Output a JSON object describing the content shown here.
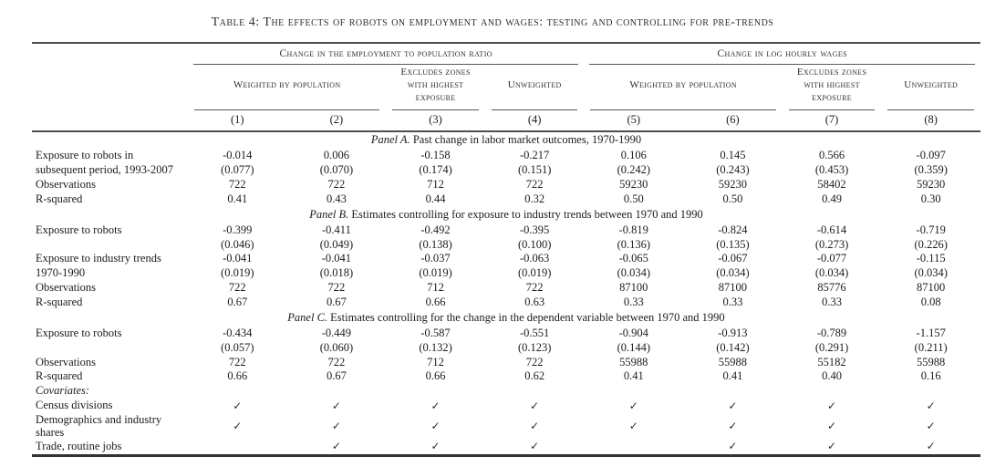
{
  "title": "Table 4: The effects of robots on employment and wages: testing and controlling for pre-trends",
  "colors": {
    "text": "#1c1c1c",
    "rule": "#4d4d4d"
  },
  "table": {
    "group_headers": [
      "Change in the employment to population ratio",
      "Change in log hourly wages"
    ],
    "sub_headers": [
      "Weighted by population",
      "Excludes zones with highest exposure",
      "Unweighted",
      "Weighted by population",
      "Excludes zones with highest exposure",
      "Unweighted"
    ],
    "col_numbers": [
      "(1)",
      "(2)",
      "(3)",
      "(4)",
      "(5)",
      "(6)",
      "(7)",
      "(8)"
    ],
    "panels": {
      "a": {
        "title_em": "Panel A.",
        "title_rest": " Past change in labor market outcomes, 1970-1990",
        "coef_label1": "Exposure to robots in",
        "coef_label2": "subsequent period, 1993-2007",
        "coef": [
          "-0.014",
          "0.006",
          "-0.158",
          "-0.217",
          "0.106",
          "0.145",
          "0.566",
          "-0.097"
        ],
        "se": [
          "(0.077)",
          "(0.070)",
          "(0.174)",
          "(0.151)",
          "(0.242)",
          "(0.243)",
          "(0.453)",
          "(0.359)"
        ],
        "obs_label": "Observations",
        "obs": [
          "722",
          "722",
          "712",
          "722",
          "59230",
          "59230",
          "58402",
          "59230"
        ],
        "r2_label": "R-squared",
        "r2": [
          "0.41",
          "0.43",
          "0.44",
          "0.32",
          "0.50",
          "0.50",
          "0.49",
          "0.30"
        ]
      },
      "b": {
        "title_em": "Panel B.",
        "title_rest": " Estimates controlling for exposure to industry trends between 1970 and 1990",
        "coef_label": "Exposure to robots",
        "coef": [
          "-0.399",
          "-0.411",
          "-0.492",
          "-0.395",
          "-0.819",
          "-0.824",
          "-0.614",
          "-0.719"
        ],
        "se": [
          "(0.046)",
          "(0.049)",
          "(0.138)",
          "(0.100)",
          "(0.136)",
          "(0.135)",
          "(0.273)",
          "(0.226)"
        ],
        "trend_label1": "Exposure to industry trends",
        "trend_label2": "1970-1990",
        "trend_coef": [
          "-0.041",
          "-0.041",
          "-0.037",
          "-0.063",
          "-0.065",
          "-0.067",
          "-0.077",
          "-0.115"
        ],
        "trend_se": [
          "(0.019)",
          "(0.018)",
          "(0.019)",
          "(0.019)",
          "(0.034)",
          "(0.034)",
          "(0.034)",
          "(0.034)"
        ],
        "obs_label": "Observations",
        "obs": [
          "722",
          "722",
          "712",
          "722",
          "87100",
          "87100",
          "85776",
          "87100"
        ],
        "r2_label": "R-squared",
        "r2": [
          "0.67",
          "0.67",
          "0.66",
          "0.63",
          "0.33",
          "0.33",
          "0.33",
          "0.08"
        ]
      },
      "c": {
        "title_em": "Panel C.",
        "title_rest": " Estimates controlling for the change in the dependent variable between 1970 and 1990",
        "coef_label": "Exposure to robots",
        "coef": [
          "-0.434",
          "-0.449",
          "-0.587",
          "-0.551",
          "-0.904",
          "-0.913",
          "-0.789",
          "-1.157"
        ],
        "se": [
          "(0.057)",
          "(0.060)",
          "(0.132)",
          "(0.123)",
          "(0.144)",
          "(0.142)",
          "(0.291)",
          "(0.211)"
        ],
        "obs_label": "Observations",
        "obs": [
          "722",
          "722",
          "712",
          "722",
          "55988",
          "55988",
          "55182",
          "55988"
        ],
        "r2_label": "R-squared",
        "r2": [
          "0.66",
          "0.67",
          "0.66",
          "0.62",
          "0.41",
          "0.41",
          "0.40",
          "0.16"
        ]
      }
    },
    "covariates": {
      "section_label": "Covariates:",
      "rows": [
        {
          "label": "Census divisions",
          "checks": [
            "✓",
            "✓",
            "✓",
            "✓",
            "✓",
            "✓",
            "✓",
            "✓"
          ]
        },
        {
          "label": "Demographics and industry shares",
          "checks": [
            "✓",
            "✓",
            "✓",
            "✓",
            "✓",
            "✓",
            "✓",
            "✓"
          ]
        },
        {
          "label": "Trade, routine jobs",
          "checks": [
            "",
            "✓",
            "✓",
            "✓",
            "",
            "✓",
            "✓",
            "✓"
          ]
        }
      ]
    }
  }
}
